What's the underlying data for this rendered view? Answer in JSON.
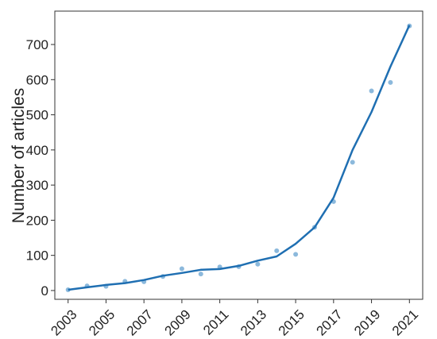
{
  "chart_data": {
    "type": "scatter",
    "title": "",
    "xlabel": "",
    "ylabel": "Number of articles",
    "xlim": [
      2002.3,
      2021.7
    ],
    "ylim": [
      -25,
      795
    ],
    "x_ticks": [
      2003,
      2005,
      2007,
      2009,
      2011,
      2013,
      2015,
      2017,
      2019,
      2021
    ],
    "y_ticks": [
      0,
      100,
      200,
      300,
      400,
      500,
      600,
      700
    ],
    "grid": false,
    "legend": "none",
    "colors": {
      "points": "#7fb1d8",
      "line": "#1f6fb2"
    },
    "series": [
      {
        "kind": "points",
        "x": [
          2003,
          2004,
          2005,
          2006,
          2007,
          2008,
          2009,
          2010,
          2011,
          2012,
          2013,
          2014,
          2015,
          2016,
          2017,
          2018,
          2019,
          2020,
          2021
        ],
        "y": [
          2,
          13,
          12,
          26,
          25,
          40,
          62,
          47,
          67,
          68,
          75,
          113,
          103,
          180,
          253,
          365,
          568,
          592,
          753
        ]
      },
      {
        "kind": "line",
        "x": [
          2003,
          2004,
          2005,
          2006,
          2007,
          2008,
          2009,
          2010,
          2011,
          2012,
          2013,
          2014,
          2015,
          2016,
          2017,
          2018,
          2019,
          2020,
          2021
        ],
        "y": [
          2,
          9,
          16,
          21,
          30,
          42,
          50,
          59,
          61,
          70,
          85,
          97,
          133,
          180,
          264,
          400,
          508,
          637,
          755
        ]
      }
    ]
  }
}
